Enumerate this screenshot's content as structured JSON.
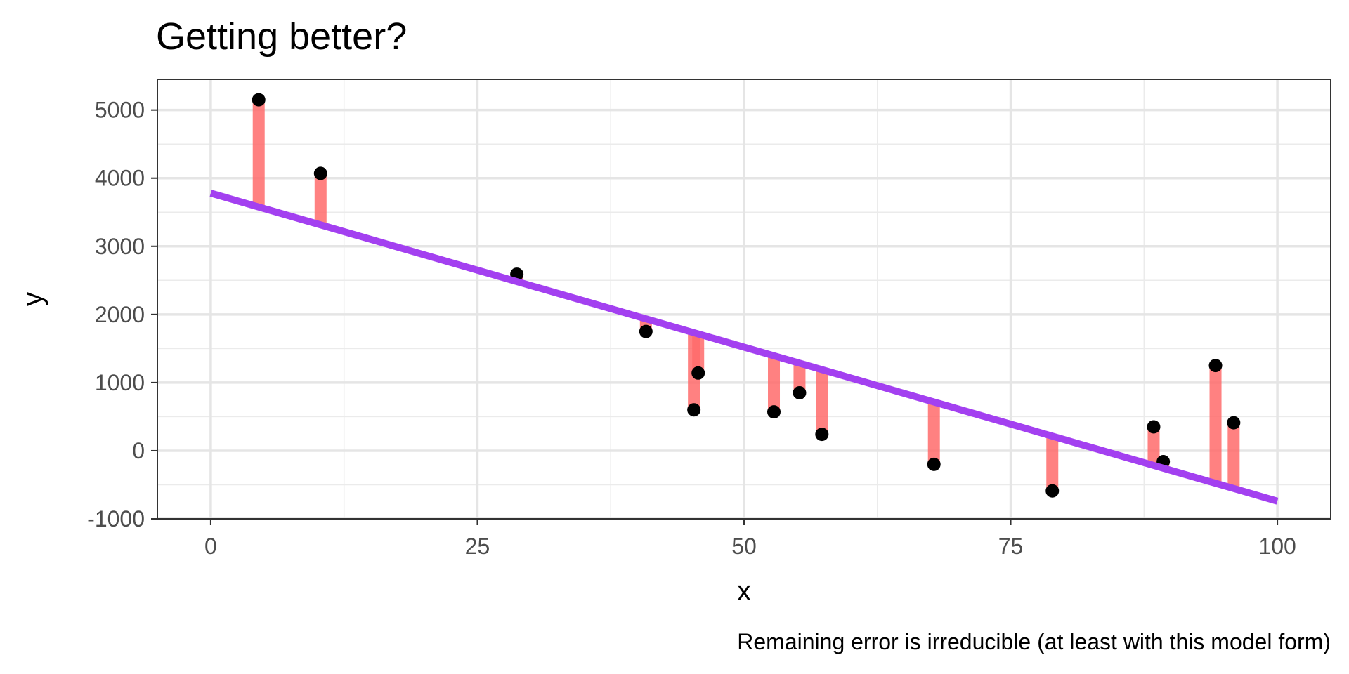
{
  "chart_data": {
    "type": "scatter",
    "title": "Getting better?",
    "xlabel": "x",
    "ylabel": "y",
    "caption": "Remaining error is irreducible (at least with this model form)",
    "xlim": [
      -5,
      105
    ],
    "ylim": [
      -1000,
      5450
    ],
    "x_ticks": [
      0,
      25,
      50,
      75,
      100
    ],
    "x_tick_labels": [
      "0",
      "25",
      "50",
      "75",
      "100"
    ],
    "y_ticks": [
      -1000,
      0,
      1000,
      2000,
      3000,
      4000,
      5000
    ],
    "y_tick_labels": [
      "-1000",
      "0",
      "1000",
      "2000",
      "3000",
      "4000",
      "5000"
    ],
    "grid": true,
    "fit_line": {
      "x": [
        0,
        100
      ],
      "y": [
        3780,
        -740
      ],
      "color": "#a340f0"
    },
    "residual_color": "#ff6b6b",
    "point_color": "#000000",
    "points": [
      {
        "x": 4.5,
        "y": 5150
      },
      {
        "x": 10.3,
        "y": 4070
      },
      {
        "x": 28.7,
        "y": 2590
      },
      {
        "x": 40.8,
        "y": 1750
      },
      {
        "x": 45.3,
        "y": 600
      },
      {
        "x": 45.7,
        "y": 1140
      },
      {
        "x": 52.8,
        "y": 570
      },
      {
        "x": 55.2,
        "y": 850
      },
      {
        "x": 57.3,
        "y": 240
      },
      {
        "x": 67.8,
        "y": -200
      },
      {
        "x": 78.9,
        "y": -590
      },
      {
        "x": 88.4,
        "y": 350
      },
      {
        "x": 89.3,
        "y": -160
      },
      {
        "x": 94.2,
        "y": 1250
      },
      {
        "x": 95.9,
        "y": 410
      }
    ]
  }
}
